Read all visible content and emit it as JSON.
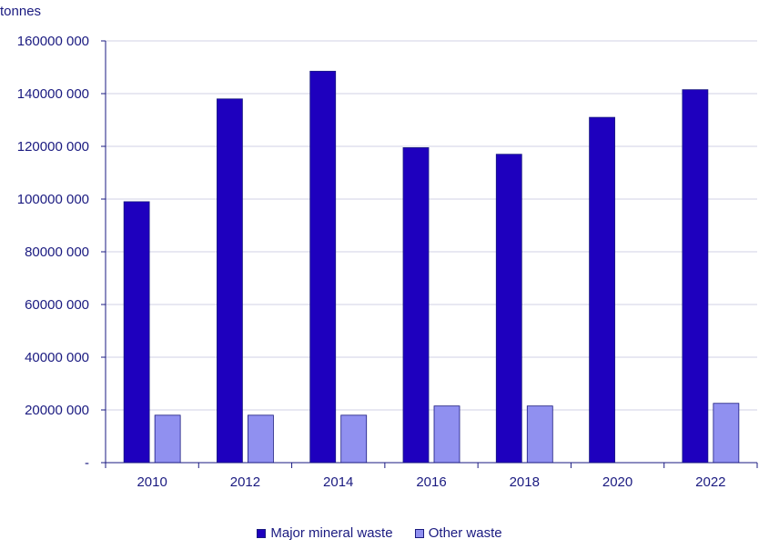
{
  "chart_data": {
    "type": "bar",
    "unit_label": "tonnes",
    "categories": [
      "2010",
      "2012",
      "2014",
      "2016",
      "2018",
      "2020",
      "2022"
    ],
    "series": [
      {
        "name": "Major mineral waste",
        "color": "#1e00be",
        "values": [
          99000000,
          138000000,
          148500000,
          119500000,
          117000000,
          131000000,
          141500000
        ]
      },
      {
        "name": "Other waste",
        "color": "#9090f0",
        "values": [
          18000000,
          18000000,
          18000000,
          21500000,
          21500000,
          0,
          22500000
        ]
      }
    ],
    "ylim": [
      0,
      160000000
    ],
    "yticks": [
      0,
      20000000,
      40000000,
      60000000,
      80000000,
      100000000,
      120000000,
      140000000,
      160000000
    ],
    "ytick_labels": [
      "-",
      "20000 000",
      "40000 000",
      "60000 000",
      "80000 000",
      "100000 000",
      "120000 000",
      "140000 000",
      "160000 000"
    ],
    "grid": true,
    "legend_position": "bottom-center"
  }
}
